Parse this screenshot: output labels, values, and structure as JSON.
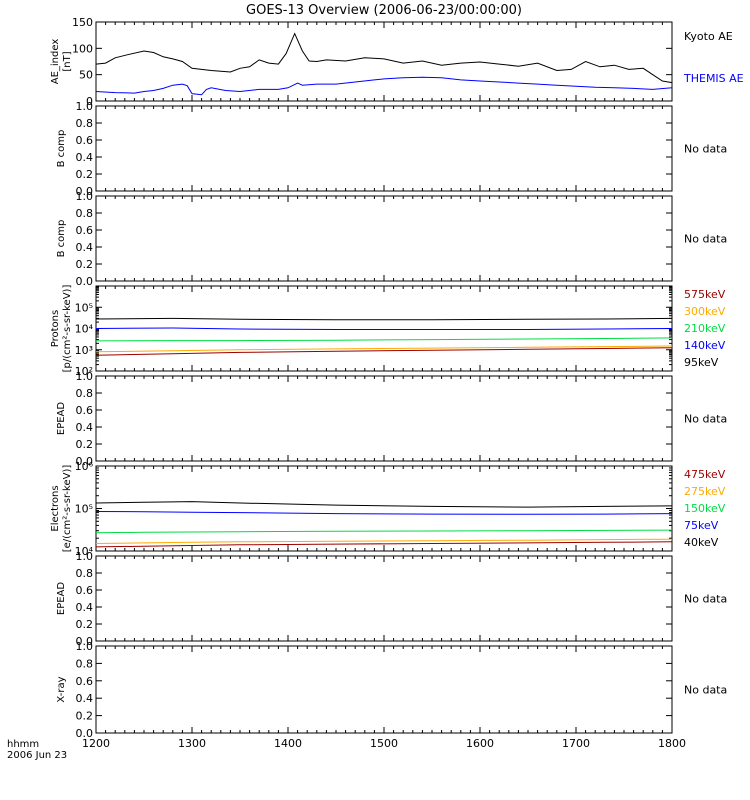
{
  "title": "GOES-13 Overview (2006-06-23/00:00:00)",
  "x_axis": {
    "corner_label_1": "hhmm",
    "corner_label_2": "2006 Jun 23",
    "ticks": [
      "1200",
      "1300",
      "1400",
      "1500",
      "1600",
      "1700",
      "1800"
    ],
    "range_hours": [
      12,
      18
    ]
  },
  "panels": [
    {
      "id": "ae",
      "ylabel_lines": [
        "AE_index",
        "[nT]"
      ],
      "ylim": [
        0,
        150
      ],
      "ticks": [
        "0",
        "50",
        "100",
        "150"
      ],
      "legend": [
        {
          "label": "Kyoto AE",
          "color": "#000000"
        },
        {
          "label": "THEMIS AE",
          "color": "#0000ff"
        }
      ],
      "status": ""
    },
    {
      "id": "b1",
      "ylabel_lines": [
        "B comp"
      ],
      "ylim": [
        0,
        1
      ],
      "ticks": [
        "0.0",
        "0.2",
        "0.4",
        "0.6",
        "0.8",
        "1.0"
      ],
      "status": "No data"
    },
    {
      "id": "b2",
      "ylabel_lines": [
        "B comp"
      ],
      "ylim": [
        0,
        1
      ],
      "ticks": [
        "0.0",
        "0.2",
        "0.4",
        "0.6",
        "0.8",
        "1.0"
      ],
      "status": "No data"
    },
    {
      "id": "protons",
      "ylabel_lines": [
        "Protons",
        "[p/(cm²-s-sr-keV)]"
      ],
      "log": true,
      "ylim": [
        100,
        1000000
      ],
      "ticks": [
        "10²",
        "10³",
        "10⁴",
        "10⁵"
      ],
      "legend": [
        {
          "label": "575keV",
          "color": "#990000"
        },
        {
          "label": "300keV",
          "color": "#ffaa00"
        },
        {
          "label": "210keV",
          "color": "#00dd44"
        },
        {
          "label": "140keV",
          "color": "#0000ff"
        },
        {
          "label": "95keV",
          "color": "#000000"
        }
      ],
      "status": ""
    },
    {
      "id": "epead1",
      "ylabel_lines": [
        "EPEAD"
      ],
      "ylim": [
        0,
        1
      ],
      "ticks": [
        "0.0",
        "0.2",
        "0.4",
        "0.6",
        "0.8",
        "1.0"
      ],
      "status": "No data"
    },
    {
      "id": "electrons",
      "ylabel_lines": [
        "Electrons",
        "[e/(cm²-s-sr-keV)]"
      ],
      "log": true,
      "ylim": [
        10000,
        1000000
      ],
      "ticks": [
        "10⁴",
        "10⁵",
        "10⁶"
      ],
      "legend": [
        {
          "label": "475keV",
          "color": "#990000"
        },
        {
          "label": "275keV",
          "color": "#ffaa00"
        },
        {
          "label": "150keV",
          "color": "#00dd44"
        },
        {
          "label": "75keV",
          "color": "#0000ff"
        },
        {
          "label": "40keV",
          "color": "#000000"
        }
      ],
      "status": ""
    },
    {
      "id": "epead2",
      "ylabel_lines": [
        "EPEAD"
      ],
      "ylim": [
        0,
        1
      ],
      "ticks": [
        "0.0",
        "0.2",
        "0.4",
        "0.6",
        "0.8",
        "1.0"
      ],
      "status": "No data"
    },
    {
      "id": "xray",
      "ylabel_lines": [
        "X-ray"
      ],
      "ylim": [
        0,
        1
      ],
      "ticks": [
        "0.0",
        "0.2",
        "0.4",
        "0.6",
        "0.8",
        "1.0"
      ],
      "status": "No data"
    }
  ],
  "chart_data": [
    {
      "type": "line",
      "panel": "ae",
      "x_unit": "hours UT",
      "series": [
        {
          "name": "Kyoto AE",
          "color": "#000000",
          "x": [
            12.0,
            12.1,
            12.2,
            12.33,
            12.5,
            12.6,
            12.7,
            12.8,
            12.9,
            13.0,
            13.2,
            13.4,
            13.5,
            13.6,
            13.7,
            13.8,
            13.9,
            13.98,
            14.07,
            14.15,
            14.22,
            14.3,
            14.4,
            14.6,
            14.8,
            15.0,
            15.2,
            15.4,
            15.6,
            15.8,
            16.0,
            16.2,
            16.4,
            16.6,
            16.8,
            16.95,
            17.1,
            17.25,
            17.4,
            17.55,
            17.7,
            17.8,
            17.9,
            18.0
          ],
          "y": [
            70,
            72,
            82,
            88,
            95,
            92,
            84,
            80,
            75,
            62,
            58,
            55,
            62,
            65,
            78,
            72,
            70,
            90,
            128,
            95,
            76,
            75,
            78,
            76,
            82,
            80,
            72,
            76,
            68,
            72,
            74,
            70,
            66,
            72,
            58,
            60,
            75,
            65,
            68,
            60,
            62,
            50,
            38,
            35
          ]
        },
        {
          "name": "THEMIS AE",
          "color": "#0000ff",
          "x": [
            12.0,
            12.2,
            12.4,
            12.5,
            12.6,
            12.7,
            12.8,
            12.9,
            12.95,
            13.0,
            13.1,
            13.15,
            13.2,
            13.35,
            13.5,
            13.7,
            13.9,
            14.0,
            14.1,
            14.15,
            14.3,
            14.5,
            14.7,
            14.9,
            15.0,
            15.2,
            15.4,
            15.6,
            15.8,
            16.0,
            16.2,
            16.4,
            16.6,
            16.8,
            17.0,
            17.2,
            17.4,
            17.6,
            17.8,
            18.0
          ],
          "y": [
            18,
            16,
            15,
            18,
            20,
            24,
            30,
            32,
            29,
            14,
            12,
            22,
            25,
            20,
            18,
            22,
            22,
            25,
            34,
            30,
            32,
            32,
            36,
            40,
            42,
            44,
            45,
            44,
            40,
            38,
            36,
            34,
            32,
            30,
            28,
            26,
            25,
            24,
            22,
            25
          ]
        }
      ]
    },
    {
      "type": "line",
      "panel": "protons",
      "x_unit": "hours UT",
      "log_y": true,
      "series": [
        {
          "name": "95keV",
          "color": "#000000",
          "x": [
            12.0,
            12.8,
            13.5,
            14.5,
            15.5,
            16.5,
            17.3,
            18.0
          ],
          "y": [
            28000,
            30000,
            27000,
            26000,
            26000,
            27000,
            28000,
            30000
          ]
        },
        {
          "name": "140keV",
          "color": "#0000ff",
          "x": [
            12.0,
            12.8,
            13.5,
            14.5,
            15.5,
            16.5,
            17.3,
            18.0
          ],
          "y": [
            10000,
            10500,
            9500,
            9000,
            9000,
            9000,
            9500,
            10000
          ]
        },
        {
          "name": "210keV",
          "color": "#00dd44",
          "x": [
            12.0,
            12.8,
            13.5,
            14.5,
            15.5,
            16.5,
            17.3,
            18.0
          ],
          "y": [
            2600,
            2700,
            2700,
            2800,
            3000,
            3200,
            3400,
            3600
          ]
        },
        {
          "name": "300keV",
          "color": "#ffaa00",
          "x": [
            12.0,
            12.8,
            13.5,
            14.5,
            15.5,
            16.5,
            17.3,
            18.0
          ],
          "y": [
            800,
            900,
            1000,
            1100,
            1200,
            1300,
            1400,
            1500
          ]
        },
        {
          "name": "575keV",
          "color": "#990000",
          "x": [
            12.0,
            12.8,
            13.5,
            14.5,
            15.5,
            16.5,
            17.3,
            18.0
          ],
          "y": [
            550,
            650,
            750,
            850,
            950,
            1050,
            1150,
            1250
          ]
        }
      ]
    },
    {
      "type": "line",
      "panel": "electrons",
      "x_unit": "hours UT",
      "log_y": true,
      "series": [
        {
          "name": "40keV",
          "color": "#000000",
          "x": [
            12.0,
            12.5,
            13.0,
            13.5,
            14.5,
            15.5,
            16.5,
            17.3,
            18.0
          ],
          "y": [
            135000,
            140000,
            145000,
            135000,
            120000,
            112000,
            108000,
            112000,
            115000
          ]
        },
        {
          "name": "75keV",
          "color": "#0000ff",
          "x": [
            12.0,
            12.5,
            13.0,
            13.5,
            14.5,
            15.5,
            16.5,
            17.3,
            18.0
          ],
          "y": [
            85000,
            84000,
            82000,
            80000,
            76000,
            74000,
            73000,
            74000,
            76000
          ]
        },
        {
          "name": "150keV",
          "color": "#00dd44",
          "x": [
            12.0,
            12.5,
            13.0,
            13.5,
            14.5,
            15.5,
            16.5,
            17.3,
            18.0
          ],
          "y": [
            27000,
            27500,
            28000,
            28500,
            29000,
            29500,
            30000,
            30500,
            31000
          ]
        },
        {
          "name": "275keV",
          "color": "#ffaa00",
          "x": [
            12.0,
            12.5,
            13.0,
            13.5,
            14.5,
            15.5,
            16.5,
            17.3,
            18.0
          ],
          "y": [
            15000,
            15500,
            16000,
            16500,
            17000,
            17500,
            18000,
            18500,
            19000
          ]
        },
        {
          "name": "475keV",
          "color": "#990000",
          "x": [
            12.0,
            12.5,
            13.0,
            13.5,
            14.5,
            15.5,
            16.5,
            17.3,
            18.0
          ],
          "y": [
            12500,
            13000,
            13500,
            14000,
            14500,
            15000,
            15500,
            16000,
            16500
          ]
        }
      ]
    }
  ]
}
